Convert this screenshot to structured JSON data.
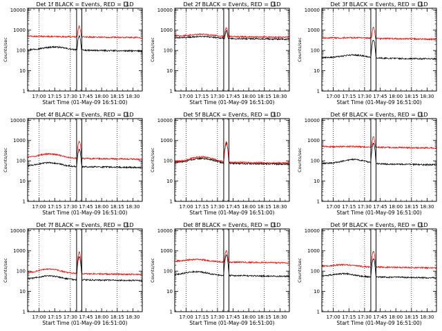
{
  "figure": {
    "title": "Detector count rates grid"
  },
  "chart_data": [
    {
      "type": "line",
      "title": "Det 1f BLACK = Events, RED = LLD",
      "xlabel": "Start Time (01-May-09 16:51:00)",
      "ylabel": "Counts/sec",
      "x_ticks": [
        "17:00",
        "17:15",
        "17:30",
        "17:45",
        "18:00",
        "18:15",
        "18:30"
      ],
      "y_ticks": [
        "1",
        "10",
        "100",
        "1000",
        "10000"
      ],
      "y_scale": "log",
      "ylim": [
        1,
        12000
      ],
      "xlim_minutes": [
        -11,
        99
      ],
      "dotted_vlines_minutes": [
        0,
        30,
        75
      ],
      "solid_vlines_minutes": [
        36,
        41
      ],
      "series": [
        {
          "name": "Events",
          "color": "#000000",
          "base": 110,
          "hump": 1.4,
          "hump_at": 15,
          "peak": 500
        },
        {
          "name": "LLD",
          "color": "#ff0000",
          "base": 500,
          "hump": 1.0,
          "hump_at": 15,
          "peak": 1400
        }
      ]
    },
    {
      "type": "line",
      "title": "Det 2f BLACK = Events, RED = LLD",
      "xlabel": "Start Time (01-May-09 16:51:00)",
      "ylabel": "Counts/sec",
      "x_ticks": [
        "17:00",
        "17:15",
        "17:30",
        "17:45",
        "18:00",
        "18:15",
        "18:30"
      ],
      "y_ticks": [
        "1",
        "10",
        "100",
        "1000",
        "10000"
      ],
      "y_scale": "log",
      "ylim": [
        1,
        12000
      ],
      "xlim_minutes": [
        -11,
        99
      ],
      "dotted_vlines_minutes": [
        0,
        30,
        75
      ],
      "solid_vlines_minutes": [
        36,
        41
      ],
      "series": [
        {
          "name": "Events",
          "color": "#000000",
          "base": 420,
          "hump": 1.2,
          "hump_at": 15,
          "peak": 800
        },
        {
          "name": "LLD",
          "color": "#ff0000",
          "base": 520,
          "hump": 1.25,
          "hump_at": 15,
          "peak": 1200
        }
      ]
    },
    {
      "type": "line",
      "title": "Det 3f BLACK = Events, RED = LLD",
      "xlabel": "Start Time (01-May-09 16:51:00)",
      "ylabel": "Counts/sec",
      "x_ticks": [
        "17:00",
        "17:15",
        "17:30",
        "17:45",
        "18:00",
        "18:15",
        "18:30"
      ],
      "y_ticks": [
        "1",
        "10",
        "100",
        "1000",
        "10000"
      ],
      "y_scale": "log",
      "ylim": [
        1,
        12000
      ],
      "xlim_minutes": [
        -11,
        99
      ],
      "dotted_vlines_minutes": [
        0,
        30,
        75
      ],
      "solid_vlines_minutes": [
        36,
        41
      ],
      "series": [
        {
          "name": "Events",
          "color": "#000000",
          "base": 45,
          "hump": 1.4,
          "hump_at": 20,
          "peak": 320
        },
        {
          "name": "LLD",
          "color": "#ff0000",
          "base": 420,
          "hump": 1.05,
          "hump_at": 20,
          "peak": 1200
        }
      ]
    },
    {
      "type": "line",
      "title": "Det 4f BLACK = Events, RED = LLD",
      "xlabel": "Start Time (01-May-09 16:51:00)",
      "ylabel": "Counts/sec",
      "x_ticks": [
        "17:00",
        "17:15",
        "17:30",
        "17:45",
        "18:00",
        "18:15",
        "18:30"
      ],
      "y_ticks": [
        "1",
        "10",
        "100",
        "1000",
        "10000"
      ],
      "y_scale": "log",
      "ylim": [
        1,
        12000
      ],
      "xlim_minutes": [
        -11,
        99
      ],
      "dotted_vlines_minutes": [
        0,
        30,
        75
      ],
      "solid_vlines_minutes": [
        36,
        41
      ],
      "series": [
        {
          "name": "Events",
          "color": "#000000",
          "base": 55,
          "hump": 1.5,
          "hump_at": 10,
          "peak": 350
        },
        {
          "name": "LLD",
          "color": "#ff0000",
          "base": 140,
          "hump": 1.6,
          "hump_at": 10,
          "peak": 900
        }
      ]
    },
    {
      "type": "line",
      "title": "Det 5f BLACK = Events, RED = LLD",
      "xlabel": "Start Time (01-May-09 16:51:00)",
      "ylabel": "Counts/sec",
      "x_ticks": [
        "17:00",
        "17:15",
        "17:30",
        "17:45",
        "18:00",
        "18:15",
        "18:30"
      ],
      "y_ticks": [
        "1",
        "10",
        "100",
        "1000",
        "10000"
      ],
      "y_scale": "log",
      "ylim": [
        1,
        12000
      ],
      "xlim_minutes": [
        -11,
        99
      ],
      "dotted_vlines_minutes": [
        0,
        30,
        75
      ],
      "solid_vlines_minutes": [
        36,
        41
      ],
      "series": [
        {
          "name": "Events",
          "color": "#000000",
          "base": 80,
          "hump": 1.7,
          "hump_at": 15,
          "peak": 700
        },
        {
          "name": "LLD",
          "color": "#ff0000",
          "base": 90,
          "hump": 1.8,
          "hump_at": 15,
          "peak": 800
        }
      ]
    },
    {
      "type": "line",
      "title": "Det 6f BLACK = Events, RED = LLD",
      "xlabel": "Start Time (01-May-09 16:51:00)",
      "ylabel": "Counts/sec",
      "x_ticks": [
        "17:00",
        "17:15",
        "17:30",
        "17:45",
        "18:00",
        "18:15",
        "18:30"
      ],
      "y_ticks": [
        "1",
        "10",
        "100",
        "1000",
        "10000"
      ],
      "y_scale": "log",
      "ylim": [
        1,
        12000
      ],
      "xlim_minutes": [
        -11,
        99
      ],
      "dotted_vlines_minutes": [
        0,
        30,
        75
      ],
      "solid_vlines_minutes": [
        36,
        41
      ],
      "series": [
        {
          "name": "Events",
          "color": "#000000",
          "base": 75,
          "hump": 1.6,
          "hump_at": 20,
          "peak": 700
        },
        {
          "name": "LLD",
          "color": "#ff0000",
          "base": 500,
          "hump": 1.05,
          "hump_at": 20,
          "peak": 1400
        }
      ]
    },
    {
      "type": "line",
      "title": "Det 7f BLACK = Events, RED = LLD",
      "xlabel": "Start Time (01-May-09 16:51:00)",
      "ylabel": "Counts/sec",
      "x_ticks": [
        "17:00",
        "17:15",
        "17:30",
        "17:45",
        "18:00",
        "18:15",
        "18:30"
      ],
      "y_ticks": [
        "1",
        "10",
        "100",
        "1000",
        "10000"
      ],
      "y_scale": "log",
      "ylim": [
        1,
        12000
      ],
      "xlim_minutes": [
        -11,
        99
      ],
      "dotted_vlines_minutes": [
        0,
        30,
        75
      ],
      "solid_vlines_minutes": [
        36,
        41
      ],
      "series": [
        {
          "name": "Events",
          "color": "#000000",
          "base": 40,
          "hump": 1.5,
          "hump_at": 10,
          "peak": 500
        },
        {
          "name": "LLD",
          "color": "#ff0000",
          "base": 80,
          "hump": 1.6,
          "hump_at": 10,
          "peak": 800
        }
      ]
    },
    {
      "type": "line",
      "title": "Det 8f BLACK = Events, RED = LLD",
      "xlabel": "Start Time (01-May-09 16:51:00)",
      "ylabel": "Counts/sec",
      "x_ticks": [
        "17:00",
        "17:15",
        "17:30",
        "17:45",
        "18:00",
        "18:15",
        "18:30"
      ],
      "y_ticks": [
        "1",
        "10",
        "100",
        "1000",
        "10000"
      ],
      "y_scale": "log",
      "ylim": [
        1,
        12000
      ],
      "xlim_minutes": [
        -11,
        99
      ],
      "dotted_vlines_minutes": [
        0,
        30,
        75
      ],
      "solid_vlines_minutes": [
        36,
        41
      ],
      "series": [
        {
          "name": "Events",
          "color": "#000000",
          "base": 65,
          "hump": 1.5,
          "hump_at": 10,
          "peak": 600
        },
        {
          "name": "LLD",
          "color": "#ff0000",
          "base": 300,
          "hump": 1.3,
          "hump_at": 10,
          "peak": 950
        }
      ]
    },
    {
      "type": "line",
      "title": "Det 9f BLACK = Events, RED = LLD",
      "xlabel": "Start Time (01-May-09 16:51:00)",
      "ylabel": "Counts/sec",
      "x_ticks": [
        "17:00",
        "17:15",
        "17:30",
        "17:45",
        "18:00",
        "18:15",
        "18:30"
      ],
      "y_ticks": [
        "1",
        "10",
        "100",
        "1000",
        "10000"
      ],
      "y_scale": "log",
      "ylim": [
        1,
        12000
      ],
      "xlim_minutes": [
        -11,
        99
      ],
      "dotted_vlines_minutes": [
        0,
        30,
        75
      ],
      "solid_vlines_minutes": [
        36,
        41
      ],
      "series": [
        {
          "name": "Events",
          "color": "#000000",
          "base": 55,
          "hump": 1.4,
          "hump_at": 10,
          "peak": 400
        },
        {
          "name": "LLD",
          "color": "#ff0000",
          "base": 170,
          "hump": 1.25,
          "hump_at": 10,
          "peak": 900
        }
      ]
    }
  ]
}
